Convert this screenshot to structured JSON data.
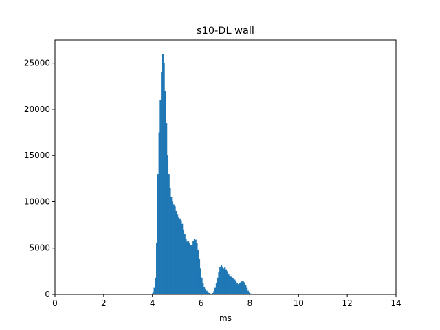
{
  "chart_data": {
    "type": "bar",
    "title": "s10-DL wall",
    "xlabel": "ms",
    "ylabel": "",
    "xlim": [
      0,
      14
    ],
    "ylim": [
      0,
      27500
    ],
    "xticks": [
      0,
      2,
      4,
      6,
      8,
      10,
      12,
      14
    ],
    "xtick_labels": [
      "0",
      "2",
      "4",
      "6",
      "8",
      "10",
      "12",
      "14"
    ],
    "yticks": [
      0,
      5000,
      10000,
      15000,
      20000,
      25000
    ],
    "ytick_labels": [
      "0",
      "5000",
      "10000",
      "15000",
      "20000",
      "25000"
    ],
    "grid": false,
    "legend": "none",
    "bar_color": "#1f77b4",
    "bins": {
      "x_start": 3.9,
      "bin_width": 0.05,
      "counts": [
        0,
        50,
        200,
        700,
        1800,
        5500,
        13000,
        17500,
        21000,
        24000,
        26000,
        25000,
        22000,
        18500,
        15000,
        13000,
        11500,
        10500,
        10000,
        9700,
        9500,
        9000,
        8600,
        8300,
        8200,
        8000,
        7600,
        7000,
        6500,
        6000,
        5700,
        5800,
        5500,
        5300,
        5300,
        5800,
        6000,
        5900,
        5500,
        4800,
        3800,
        2800,
        1800,
        1200,
        800,
        600,
        400,
        250,
        150,
        100,
        80,
        150,
        350,
        700,
        1200,
        1800,
        2400,
        2900,
        3200,
        3000,
        2800,
        2900,
        2700,
        2500,
        2200,
        2000,
        1900,
        1800,
        1700,
        1600,
        1400,
        1200,
        1100,
        1200,
        1300,
        1400,
        1400,
        1300,
        1000,
        700,
        400,
        200,
        100,
        60,
        40,
        40,
        30,
        30,
        20,
        20,
        20,
        20,
        20,
        20,
        20,
        10,
        10,
        10,
        10
      ]
    }
  }
}
